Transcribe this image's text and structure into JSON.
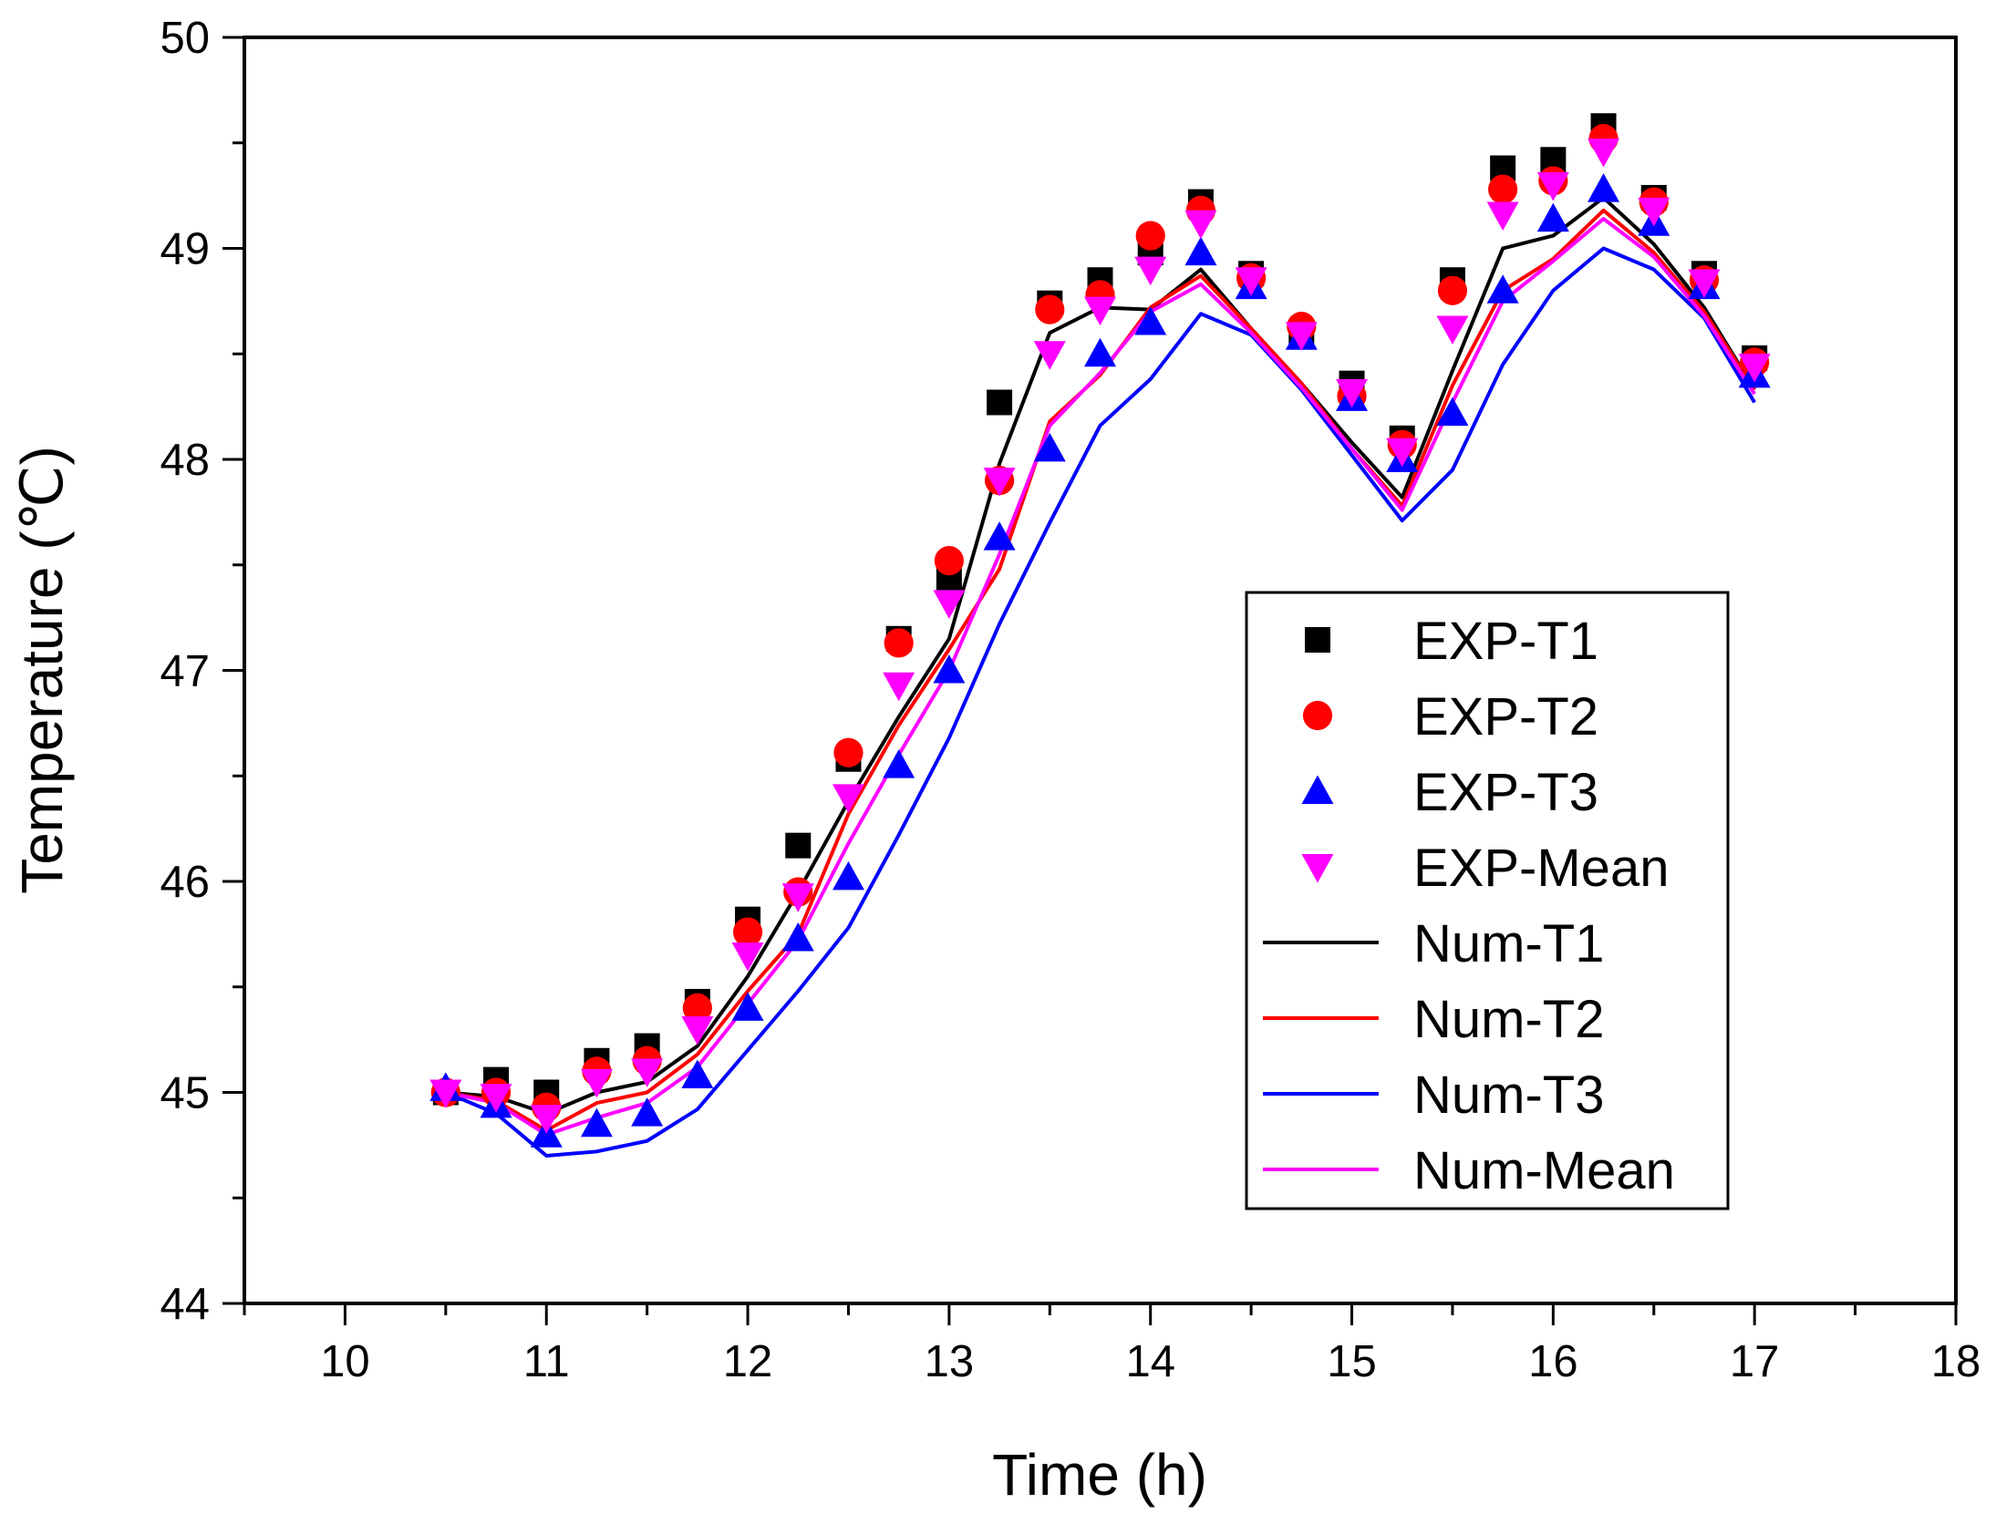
{
  "chart_data": {
    "type": "line",
    "title": "",
    "xlabel": "Time (h)",
    "ylabel": "Temperature (℃)",
    "xlim": [
      9.5,
      18
    ],
    "ylim": [
      44,
      50
    ],
    "x_ticks": [
      10,
      11,
      12,
      13,
      14,
      15,
      16,
      17,
      18
    ],
    "y_ticks": [
      44,
      45,
      46,
      47,
      48,
      49,
      50
    ],
    "legend_position": "center-right",
    "x": [
      10.5,
      10.75,
      11,
      11.25,
      11.5,
      11.75,
      12,
      12.25,
      12.5,
      12.75,
      13,
      13.25,
      13.5,
      13.75,
      14,
      14.25,
      14.5,
      14.75,
      15,
      15.25,
      15.5,
      15.75,
      16,
      16.25,
      16.5,
      16.75,
      17
    ],
    "series": [
      {
        "name": "EXP-T1",
        "kind": "scatter",
        "marker": "square",
        "color": "#000000",
        "values": [
          45.0,
          45.06,
          45.0,
          45.15,
          45.22,
          45.43,
          45.82,
          46.17,
          46.58,
          47.15,
          47.43,
          48.27,
          48.74,
          48.85,
          48.98,
          49.22,
          48.88,
          48.6,
          48.36,
          48.1,
          48.85,
          49.38,
          49.42,
          49.58,
          49.24,
          48.88,
          48.48
        ]
      },
      {
        "name": "EXP-T2",
        "kind": "scatter",
        "marker": "circle",
        "color": "#ff0000",
        "values": [
          45.0,
          45.0,
          44.93,
          45.1,
          45.15,
          45.4,
          45.76,
          45.95,
          46.61,
          47.13,
          47.52,
          47.9,
          48.71,
          48.78,
          49.06,
          49.18,
          48.86,
          48.63,
          48.3,
          48.07,
          48.8,
          49.28,
          49.32,
          49.52,
          49.22,
          48.85,
          48.46
        ]
      },
      {
        "name": "EXP-T3",
        "kind": "scatter",
        "marker": "triangle-up",
        "color": "#0000ff",
        "values": [
          45.02,
          44.94,
          44.8,
          44.85,
          44.9,
          45.08,
          45.4,
          45.73,
          46.02,
          46.55,
          47.0,
          47.63,
          48.05,
          48.5,
          48.65,
          48.98,
          48.82,
          48.58,
          48.29,
          48.0,
          48.22,
          48.8,
          49.14,
          49.28,
          49.12,
          48.82,
          48.4
        ]
      },
      {
        "name": "EXP-Mean",
        "kind": "scatter",
        "marker": "triangle-down",
        "color": "#ff00ff",
        "values": [
          45.0,
          44.98,
          44.88,
          45.05,
          45.1,
          45.3,
          45.65,
          45.93,
          46.4,
          46.93,
          47.32,
          47.9,
          48.5,
          48.71,
          48.9,
          49.12,
          48.85,
          48.59,
          48.32,
          48.04,
          48.62,
          49.16,
          49.3,
          49.46,
          49.18,
          48.84,
          48.44
        ]
      },
      {
        "name": "Num-T1",
        "kind": "line",
        "color": "#000000",
        "values": [
          45.0,
          44.98,
          44.9,
          45.0,
          45.05,
          45.22,
          45.55,
          45.95,
          46.38,
          46.78,
          47.15,
          47.98,
          48.6,
          48.72,
          48.71,
          48.9,
          48.62,
          48.36,
          48.08,
          47.82,
          48.42,
          49.0,
          49.06,
          49.24,
          49.02,
          48.72,
          48.33
        ]
      },
      {
        "name": "Num-T2",
        "kind": "line",
        "color": "#ff0000",
        "values": [
          45.0,
          44.96,
          44.82,
          44.95,
          45.0,
          45.18,
          45.48,
          45.75,
          46.32,
          46.74,
          47.1,
          47.48,
          48.18,
          48.4,
          48.72,
          48.87,
          48.62,
          48.36,
          48.05,
          47.78,
          48.35,
          48.8,
          48.95,
          49.18,
          48.98,
          48.7,
          48.33
        ]
      },
      {
        "name": "Num-T3",
        "kind": "line",
        "color": "#0000ff",
        "values": [
          45.0,
          44.9,
          44.7,
          44.72,
          44.77,
          44.92,
          45.2,
          45.48,
          45.78,
          46.22,
          46.68,
          47.22,
          47.7,
          48.16,
          48.38,
          48.69,
          48.59,
          48.33,
          48.02,
          47.71,
          47.95,
          48.45,
          48.8,
          49.0,
          48.9,
          48.67,
          48.27
        ]
      },
      {
        "name": "Num-Mean",
        "kind": "line",
        "color": "#ff00ff",
        "values": [
          45.0,
          44.95,
          44.8,
          44.88,
          44.95,
          45.12,
          45.42,
          45.72,
          46.18,
          46.6,
          47.0,
          47.55,
          48.16,
          48.41,
          48.7,
          48.83,
          48.6,
          48.34,
          48.05,
          47.76,
          48.27,
          48.75,
          48.94,
          49.14,
          48.96,
          48.68,
          48.31
        ]
      }
    ]
  }
}
